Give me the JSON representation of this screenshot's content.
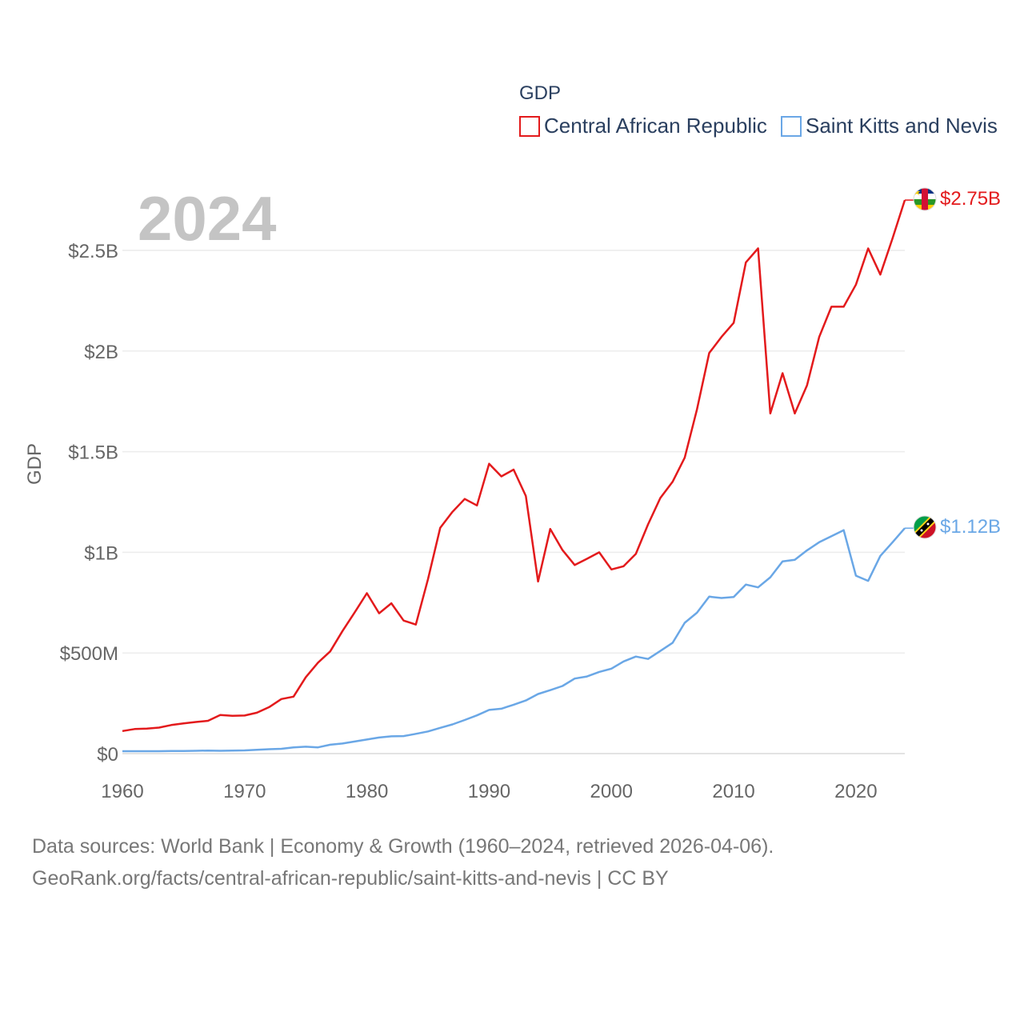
{
  "chart_data": {
    "type": "line",
    "legend_title": "GDP",
    "ylabel": "GDP",
    "year_label": "2024",
    "xlim": [
      1960,
      2024
    ],
    "ylim": [
      0,
      2800000000
    ],
    "x_ticks": [
      1960,
      1970,
      1980,
      1990,
      2000,
      2010,
      2020
    ],
    "x_tick_labels": [
      "1960",
      "1970",
      "1980",
      "1990",
      "2000",
      "2010",
      "2020"
    ],
    "y_ticks": [
      0,
      500000000,
      1000000000,
      1500000000,
      2000000000,
      2500000000
    ],
    "y_tick_labels": [
      "$0",
      "$500M",
      "$1B",
      "$1.5B",
      "$2B",
      "$2.5B"
    ],
    "x": [
      1960,
      1961,
      1962,
      1963,
      1964,
      1965,
      1966,
      1967,
      1968,
      1969,
      1970,
      1971,
      1972,
      1973,
      1974,
      1975,
      1976,
      1977,
      1978,
      1979,
      1980,
      1981,
      1982,
      1983,
      1984,
      1985,
      1986,
      1987,
      1988,
      1989,
      1990,
      1991,
      1992,
      1993,
      1994,
      1995,
      1996,
      1997,
      1998,
      1999,
      2000,
      2001,
      2002,
      2003,
      2004,
      2005,
      2006,
      2007,
      2008,
      2009,
      2010,
      2011,
      2012,
      2013,
      2014,
      2015,
      2016,
      2017,
      2018,
      2019,
      2020,
      2021,
      2022,
      2023,
      2024
    ],
    "series": [
      {
        "name": "Central African Republic",
        "color": "#e31a1c",
        "end_label": "$2.75B",
        "values": [
          112000000,
          122000000,
          124000000,
          129000000,
          142000000,
          150000000,
          157000000,
          163000000,
          192000000,
          188000000,
          189000000,
          203000000,
          231000000,
          271000000,
          283000000,
          379000000,
          452000000,
          508000000,
          609000000,
          701000000,
          797000000,
          697000000,
          747000000,
          661000000,
          641000000,
          867000000,
          1122000000,
          1201000000,
          1265000000,
          1233000000,
          1440000000,
          1377000000,
          1411000000,
          1280000000,
          855000000,
          1116000000,
          1011000000,
          937000000,
          968000000,
          1000000000,
          915000000,
          931000000,
          992000000,
          1139000000,
          1270000000,
          1350000000,
          1470000000,
          1710000000,
          1990000000,
          2070000000,
          2140000000,
          2440000000,
          2510000000,
          1690000000,
          1890000000,
          1690000000,
          1830000000,
          2070000000,
          2220000000,
          2220000000,
          2330000000,
          2510000000,
          2380000000,
          2560000000,
          2750000000
        ]
      },
      {
        "name": "Saint Kitts and Nevis",
        "color": "#6aa7e6",
        "end_label": "$1.12B",
        "values": [
          12000000,
          12000000,
          12000000,
          12000000,
          13000000,
          13000000,
          14000000,
          15000000,
          14000000,
          15000000,
          16000000,
          19000000,
          22000000,
          24000000,
          31000000,
          34000000,
          31000000,
          44000000,
          50000000,
          60000000,
          70000000,
          80000000,
          86000000,
          87000000,
          98000000,
          110000000,
          128000000,
          145000000,
          167000000,
          190000000,
          217000000,
          223000000,
          243000000,
          264000000,
          296000000,
          315000000,
          336000000,
          373000000,
          383000000,
          406000000,
          422000000,
          458000000,
          482000000,
          470000000,
          510000000,
          550000000,
          650000000,
          700000000,
          780000000,
          773000000,
          778000000,
          840000000,
          826000000,
          876000000,
          955000000,
          963000000,
          1010000000,
          1050000000,
          1080000000,
          1110000000,
          884000000,
          858000000,
          982000000,
          1050000000,
          1120000000
        ]
      }
    ]
  },
  "footer": {
    "line1": "Data sources: World Bank | Economy & Growth (1960–2024, retrieved 2026-04-06).",
    "line2": "GeoRank.org/facts/central-african-republic/saint-kitts-and-nevis | CC BY"
  },
  "flags": {
    "car": "central-african-republic-flag-icon",
    "kn": "saint-kitts-and-nevis-flag-icon"
  }
}
